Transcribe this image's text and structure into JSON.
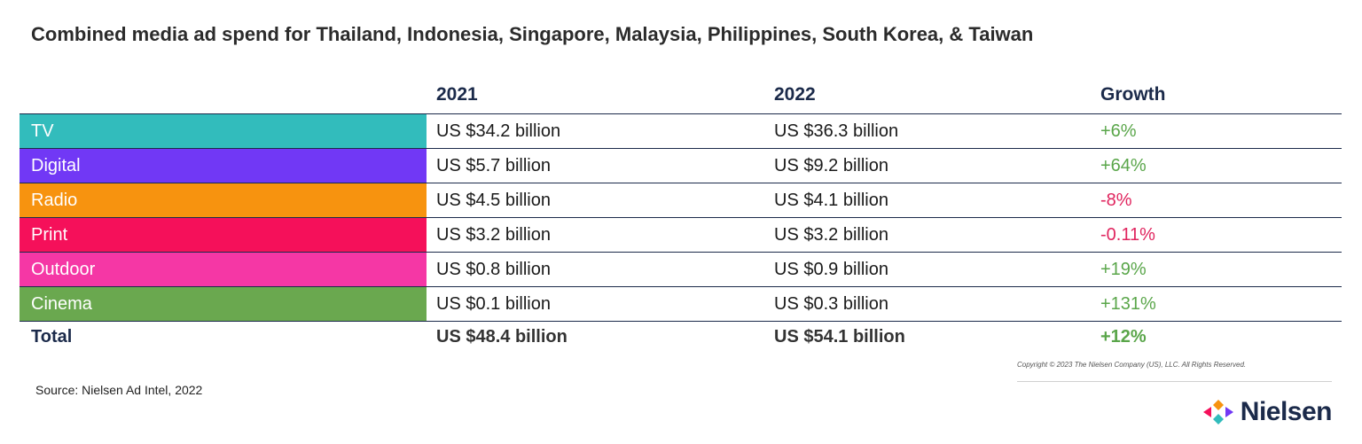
{
  "title": "Combined media ad spend for Thailand, Indonesia, Singapore, Malaysia, Philippines, South Korea, & Taiwan",
  "chart_data": {
    "type": "table",
    "columns": [
      "",
      "2021",
      "2022",
      "Growth"
    ],
    "rows": [
      {
        "label": "TV",
        "y2021": "US $34.2 billion",
        "y2022": "US $36.3 billion",
        "growth": "+6%",
        "color": "#32bcbc",
        "growth_sign": "pos"
      },
      {
        "label": "Digital",
        "y2021": "US $5.7 billion",
        "y2022": "US $9.2 billion",
        "growth": "+64%",
        "color": "#7138f5",
        "growth_sign": "pos"
      },
      {
        "label": "Radio",
        "y2021": "US $4.5 billion",
        "y2022": "US $4.1 billion",
        "growth": "-8%",
        "color": "#f7930f",
        "growth_sign": "neg"
      },
      {
        "label": "Print",
        "y2021": "US $3.2 billion",
        "y2022": "US $3.2 billion",
        "growth": "-0.11%",
        "color": "#f5105a",
        "growth_sign": "neg"
      },
      {
        "label": "Outdoor",
        "y2021": "US $0.8 billion",
        "y2022": "US $0.9 billion",
        "growth": "+19%",
        "color": "#f537a5",
        "growth_sign": "pos"
      },
      {
        "label": "Cinema",
        "y2021": "US $0.1 billion",
        "y2022": "US $0.3 billion",
        "growth": "+131%",
        "color": "#6aa84f",
        "growth_sign": "pos"
      }
    ],
    "total": {
      "label": "Total",
      "y2021": "US $48.4 billion",
      "y2022": "US $54.1 billion",
      "growth": "+12%"
    },
    "values_2021_billion_usd": [
      34.2,
      5.7,
      4.5,
      3.2,
      0.8,
      0.1
    ],
    "values_2022_billion_usd": [
      36.3,
      9.2,
      4.1,
      3.2,
      0.9,
      0.3
    ],
    "growth_percent": [
      6,
      64,
      -8,
      -0.11,
      19,
      131
    ]
  },
  "copyright": "Copyright © 2023 The Nielsen Company (US), LLC. All Rights Reserved.",
  "source": "Source: Nielsen Ad Intel, 2022",
  "logo": {
    "text": "Nielsen",
    "icon": "nielsen-logo-icon"
  },
  "colors": {
    "positive": "#5aa64a",
    "negative": "#e0245e",
    "header": "#1b2a4a"
  }
}
